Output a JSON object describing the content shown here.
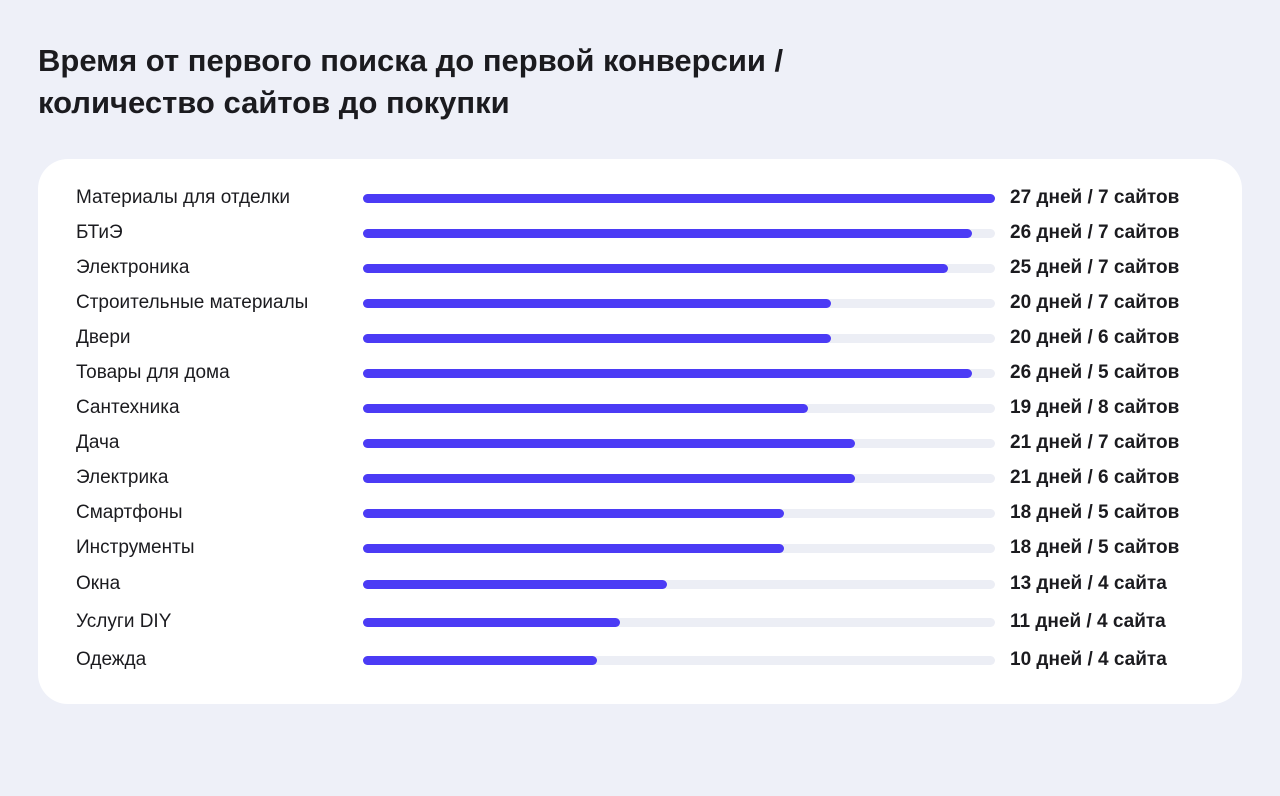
{
  "title_lines": [
    "Время от первого поиска до первой конверсии /",
    "количество сайтов до покупки"
  ],
  "colors": {
    "background": "#eef0f8",
    "card": "#ffffff",
    "bar_fill": "#4b3bf5",
    "bar_track": "#eceef5",
    "text": "#1b1b1f"
  },
  "chart_data": {
    "type": "bar",
    "orientation": "horizontal",
    "title": "Время от первого поиска до первой конверсии / количество сайтов до покупки",
    "xlim": [
      0,
      27
    ],
    "grid": false,
    "categories": [
      "Материалы для отделки",
      "БТиЭ",
      "Электроника",
      "Строительные материалы",
      "Двери",
      "Товары для дома",
      "Сантехника",
      "Дача",
      "Электрика",
      "Смартфоны",
      "Инструменты",
      "Окна",
      "Услуги DIY",
      "Одежда"
    ],
    "values": [
      27,
      26,
      25,
      20,
      20,
      26,
      19,
      21,
      21,
      18,
      18,
      13,
      11,
      10
    ],
    "sites": [
      7,
      7,
      7,
      7,
      6,
      5,
      8,
      7,
      6,
      5,
      5,
      4,
      4,
      4
    ],
    "data_labels": [
      "27 дней / 7 сайтов",
      "26 дней / 7 сайтов",
      "25 дней / 7 сайтов",
      "20 дней / 7 сайтов",
      "20 дней / 6 сайтов",
      "26 дней / 5 сайтов",
      "19 дней / 8 сайтов",
      "21 дней / 7 сайтов",
      "21 дней / 6 сайтов",
      "18 дней / 5 сайтов",
      "18 дней / 5 сайтов",
      "13 дней / 4 сайта",
      "11 дней / 4 сайта",
      "10 дней / 4 сайта"
    ]
  }
}
